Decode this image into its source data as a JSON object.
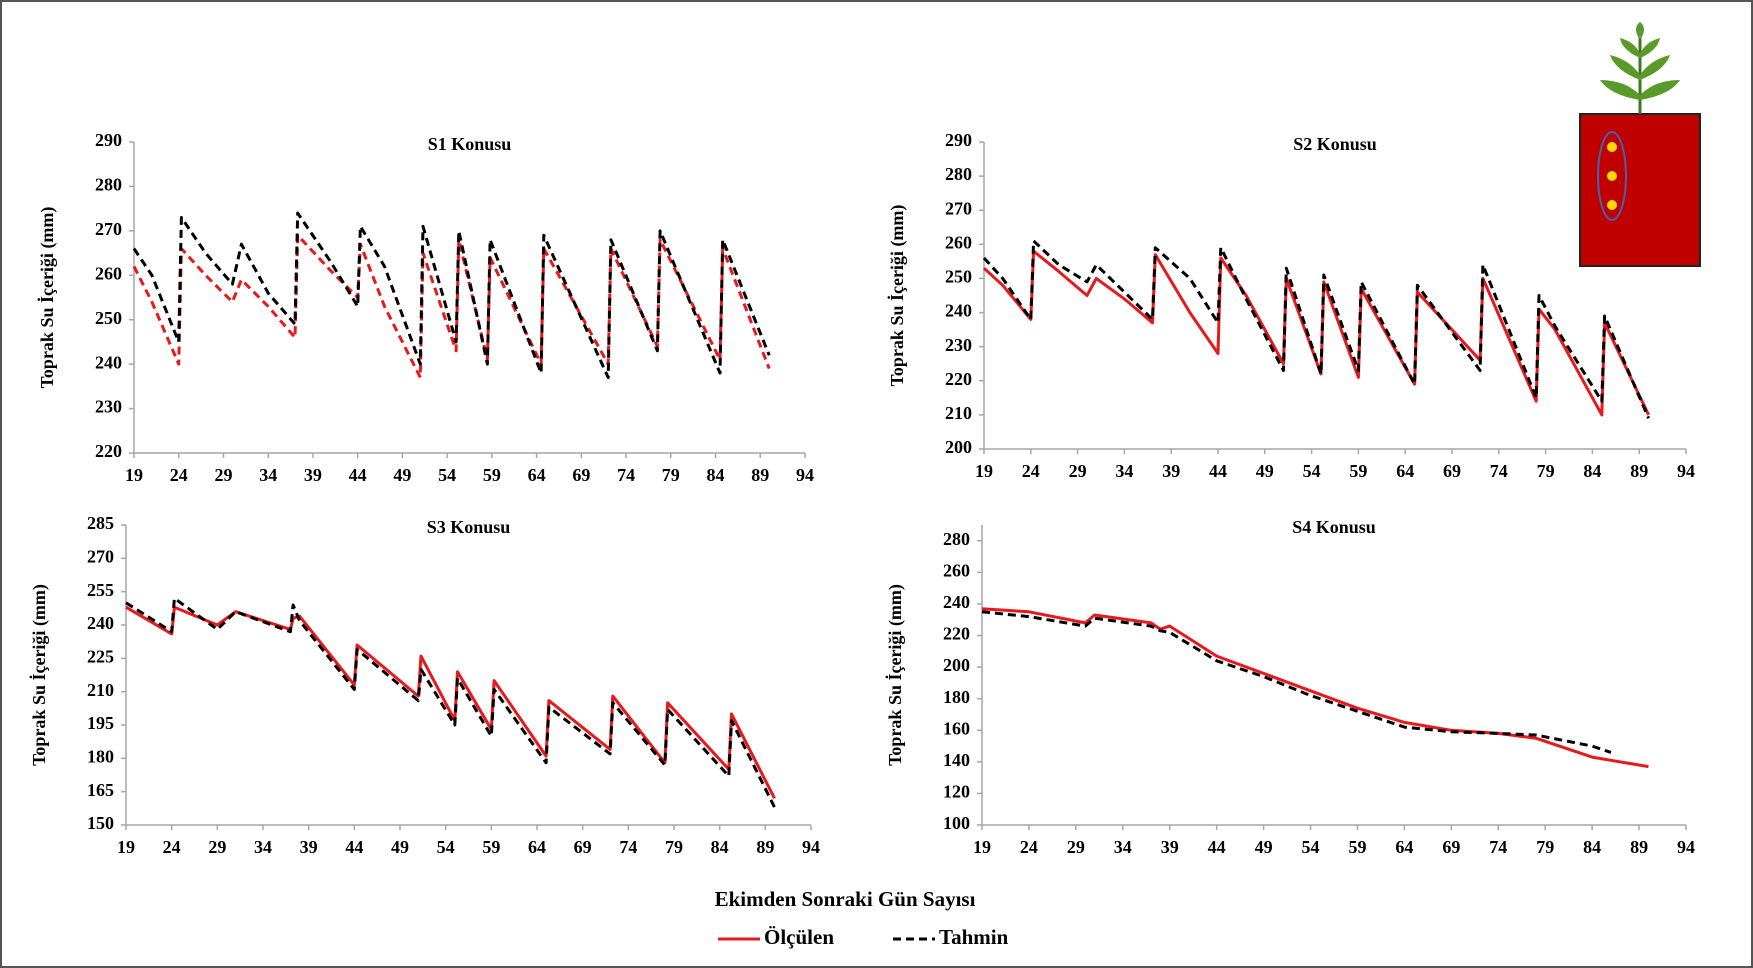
{
  "figure": {
    "x_label": "Ekimden Sonraki Gün Sayısı",
    "legend": [
      {
        "name": "Ölçülen",
        "color": "#e8191c",
        "dash": false
      },
      {
        "name": "Tahmin",
        "color": "#000000",
        "dash": true
      }
    ]
  },
  "chart_data": [
    {
      "type": "line",
      "title": "S1 Konusu",
      "y_label": "Toprak Su İçeriği (mm)",
      "x": [
        19,
        21,
        24,
        24.3,
        27,
        30,
        31,
        34,
        37,
        37.3,
        41,
        44,
        44.3,
        47,
        51,
        51.3,
        55,
        55.3,
        58.5,
        58.8,
        64.5,
        64.8,
        72,
        72.3,
        77.5,
        77.8,
        84.5,
        84.8,
        90
      ],
      "series": [
        {
          "color": "#e8191c",
          "dash": true,
          "values": [
            262,
            254,
            240,
            266,
            260,
            254,
            259,
            253,
            246,
            269,
            261,
            255,
            267,
            253,
            237,
            265,
            243,
            268,
            241,
            264,
            240,
            266,
            240,
            266,
            244,
            268,
            241,
            266,
            239
          ]
        },
        {
          "color": "#000000",
          "dash": true,
          "values": [
            266,
            260,
            245,
            273,
            265,
            258,
            267,
            256,
            249,
            274,
            263,
            253,
            271,
            262,
            240,
            271,
            245,
            270,
            240,
            268,
            238,
            269,
            237,
            268,
            243,
            270,
            238,
            268,
            242
          ]
        }
      ],
      "xlim": [
        19,
        94
      ],
      "xticks": [
        19,
        24,
        29,
        34,
        39,
        44,
        49,
        54,
        59,
        64,
        69,
        74,
        79,
        84,
        89,
        94
      ],
      "ylim": [
        220,
        290
      ],
      "yticks": [
        220,
        230,
        240,
        250,
        260,
        270,
        280,
        290
      ]
    },
    {
      "type": "line",
      "title": "S2 Konusu",
      "y_label": "Toprak Su İçeriği (mm)",
      "x": [
        19,
        21,
        24,
        24.3,
        27,
        30,
        31,
        34,
        37,
        37.3,
        41,
        44,
        44.3,
        47,
        51,
        51.3,
        55,
        55.3,
        59,
        59.3,
        65,
        65.3,
        72,
        72.3,
        78,
        78.3,
        80,
        85,
        85.3,
        90
      ],
      "series": [
        {
          "color": "#e8191c",
          "dash": false,
          "values": [
            253,
            248,
            238,
            258,
            252,
            245,
            250,
            244,
            237,
            257,
            240,
            228,
            256,
            245,
            225,
            250,
            222,
            249,
            221,
            247,
            219,
            246,
            226,
            250,
            214,
            241,
            235,
            210,
            237,
            210
          ]
        },
        {
          "color": "#000000",
          "dash": true,
          "values": [
            256,
            250,
            238,
            261,
            254,
            249,
            254,
            246,
            238,
            259,
            250,
            237,
            259,
            244,
            223,
            253,
            222,
            251,
            223,
            249,
            219,
            248,
            223,
            254,
            215,
            245,
            236,
            214,
            239,
            209
          ]
        }
      ],
      "xlim": [
        19,
        94
      ],
      "xticks": [
        19,
        24,
        29,
        34,
        39,
        44,
        49,
        54,
        59,
        64,
        69,
        74,
        79,
        84,
        89,
        94
      ],
      "ylim": [
        200,
        290
      ],
      "yticks": [
        200,
        210,
        220,
        230,
        240,
        250,
        260,
        270,
        280,
        290
      ]
    },
    {
      "type": "line",
      "title": "S3 Konusu",
      "y_label": "Toprak Su İçeriği (mm)",
      "x": [
        19,
        24,
        24.3,
        29,
        31,
        37,
        37.3,
        38,
        44,
        44.3,
        51,
        51.3,
        55,
        55.3,
        59,
        59.3,
        65,
        65.3,
        72,
        72.3,
        78,
        78.3,
        85,
        85.3,
        90
      ],
      "series": [
        {
          "color": "#e8191c",
          "dash": false,
          "values": [
            248,
            236,
            248,
            240,
            246,
            238,
            243,
            244,
            213,
            231,
            208,
            226,
            197,
            219,
            193,
            215,
            181,
            206,
            184,
            208,
            178,
            205,
            175,
            200,
            162
          ]
        },
        {
          "color": "#000000",
          "dash": true,
          "values": [
            250,
            237,
            252,
            238,
            246,
            237,
            249,
            242,
            211,
            229,
            206,
            220,
            195,
            216,
            190,
            211,
            178,
            203,
            182,
            205,
            177,
            202,
            172,
            197,
            158
          ]
        }
      ],
      "xlim": [
        19,
        94
      ],
      "xticks": [
        19,
        24,
        29,
        34,
        39,
        44,
        49,
        54,
        59,
        64,
        69,
        74,
        79,
        84,
        89,
        94
      ],
      "ylim": [
        150,
        285
      ],
      "yticks": [
        150,
        165,
        180,
        195,
        210,
        225,
        240,
        255,
        270,
        285
      ]
    },
    {
      "type": "line",
      "title": "S4 Konusu",
      "y_label": "Toprak Su İçeriği (mm)",
      "x": [
        19,
        24,
        30,
        31,
        37,
        38,
        39,
        44,
        49,
        54,
        59,
        64,
        69,
        74,
        78,
        84,
        86,
        90
      ],
      "series": [
        {
          "color": "#e8191c",
          "dash": false,
          "values": [
            237,
            235,
            228,
            233,
            228,
            224,
            226,
            207,
            196,
            185,
            174,
            165,
            160,
            158,
            155,
            143,
            141,
            137
          ]
        },
        {
          "color": "#000000",
          "dash": true,
          "values": [
            235,
            232,
            226,
            231,
            226,
            223,
            222,
            204,
            194,
            182,
            172,
            162,
            159,
            158,
            157,
            150,
            146,
            null
          ]
        }
      ],
      "xlim": [
        19,
        94
      ],
      "xticks": [
        19,
        24,
        29,
        34,
        39,
        44,
        49,
        54,
        59,
        64,
        69,
        74,
        79,
        84,
        89,
        94
      ],
      "ylim": [
        100,
        290
      ],
      "yticks": [
        100,
        120,
        140,
        160,
        180,
        200,
        220,
        240,
        260,
        280
      ]
    }
  ]
}
